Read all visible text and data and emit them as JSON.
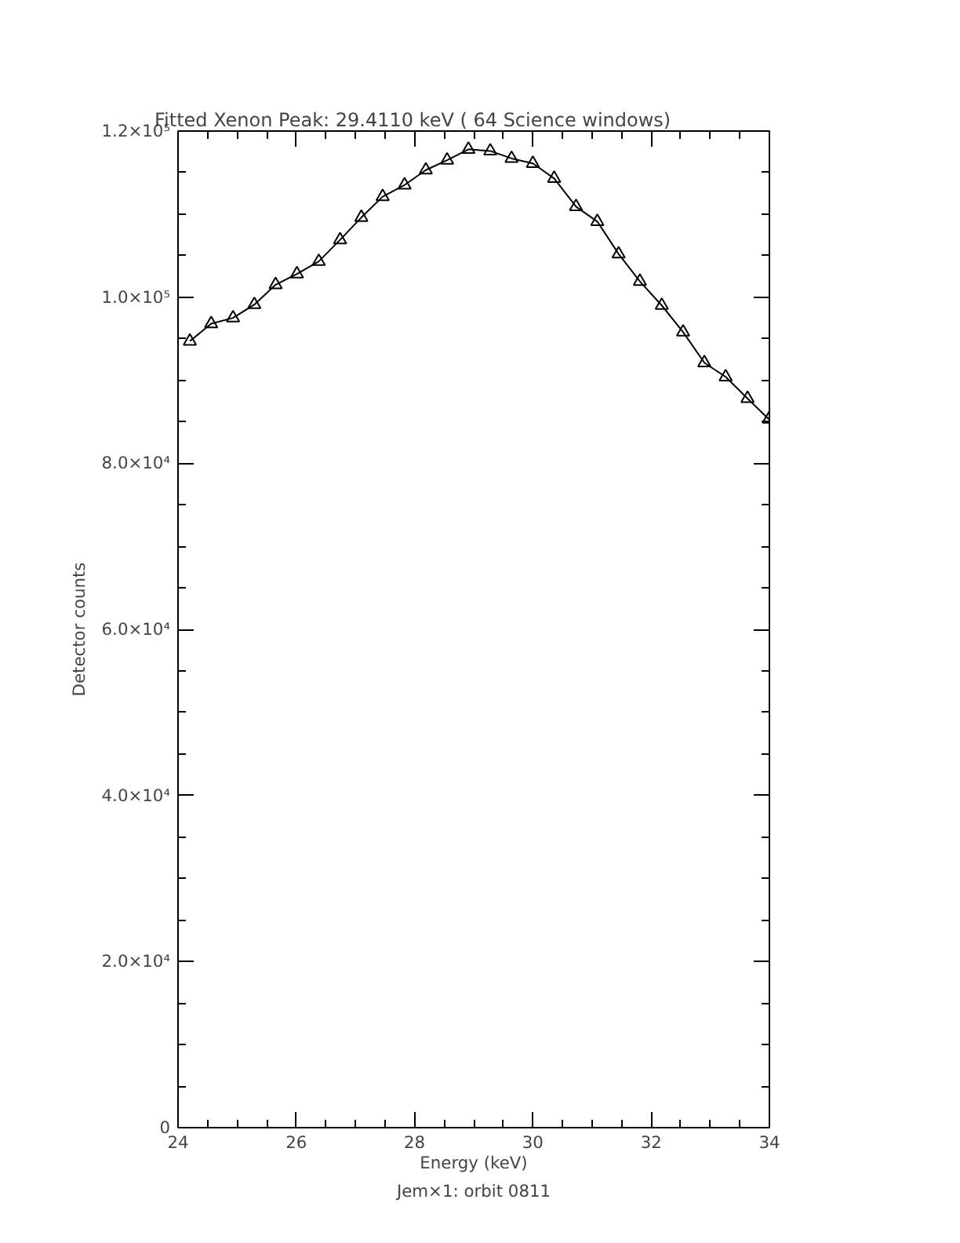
{
  "chart_data": {
    "type": "scatter",
    "title": "Fitted Xenon Peak:       29.4110 keV (      64 Science windows)",
    "xlabel": "Energy (keV)",
    "ylabel": "Detector counts",
    "annotations": [
      "Jem×1: orbit 0811"
    ],
    "x": [
      24.2,
      24.56,
      24.93,
      25.29,
      25.65,
      26.01,
      26.38,
      26.74,
      27.1,
      27.46,
      27.83,
      28.19,
      28.55,
      28.91,
      29.28,
      29.64,
      30.0,
      30.36,
      30.73,
      31.09,
      31.45,
      31.81,
      32.18,
      32.54,
      32.9,
      33.26,
      33.63,
      33.99
    ],
    "marker": "triangle",
    "series": [
      {
        "color": "#000000",
        "values": [
          94700,
          96800,
          97500,
          99100,
          101500,
          102800,
          104300,
          106900,
          109600,
          112100,
          113500,
          115300,
          116500,
          117800,
          117600,
          116700,
          116100,
          114300,
          110900,
          109100,
          105200,
          101900,
          99000,
          95800,
          92100,
          90400,
          87800,
          85300
        ]
      },
      {
        "type": "line",
        "marker": "none",
        "line_style": "solid",
        "color": "#000000",
        "values": [
          94700,
          96800,
          97500,
          99100,
          101500,
          102800,
          104300,
          106900,
          109600,
          112100,
          113500,
          115300,
          116500,
          117800,
          117600,
          116700,
          116100,
          114300,
          110900,
          109100,
          105200,
          101900,
          99000,
          95800,
          92100,
          90400,
          87800,
          85300
        ]
      }
    ],
    "xlim": [
      24,
      34
    ],
    "xticks": [
      24,
      26,
      28,
      30,
      32,
      34
    ],
    "ylim": [
      0,
      120000
    ],
    "yticks": [
      0,
      {
        "value": 20000,
        "label": "2.0×10⁴"
      },
      {
        "value": 40000,
        "label": "4.0×10⁴"
      },
      {
        "value": 60000,
        "label": "6.0×10⁴"
      },
      {
        "value": 80000,
        "label": "8.0×10⁴"
      },
      {
        "value": 100000,
        "label": "1.0×10⁵"
      },
      {
        "value": 120000,
        "label": "1.2×10⁵"
      }
    ],
    "grid": false
  }
}
